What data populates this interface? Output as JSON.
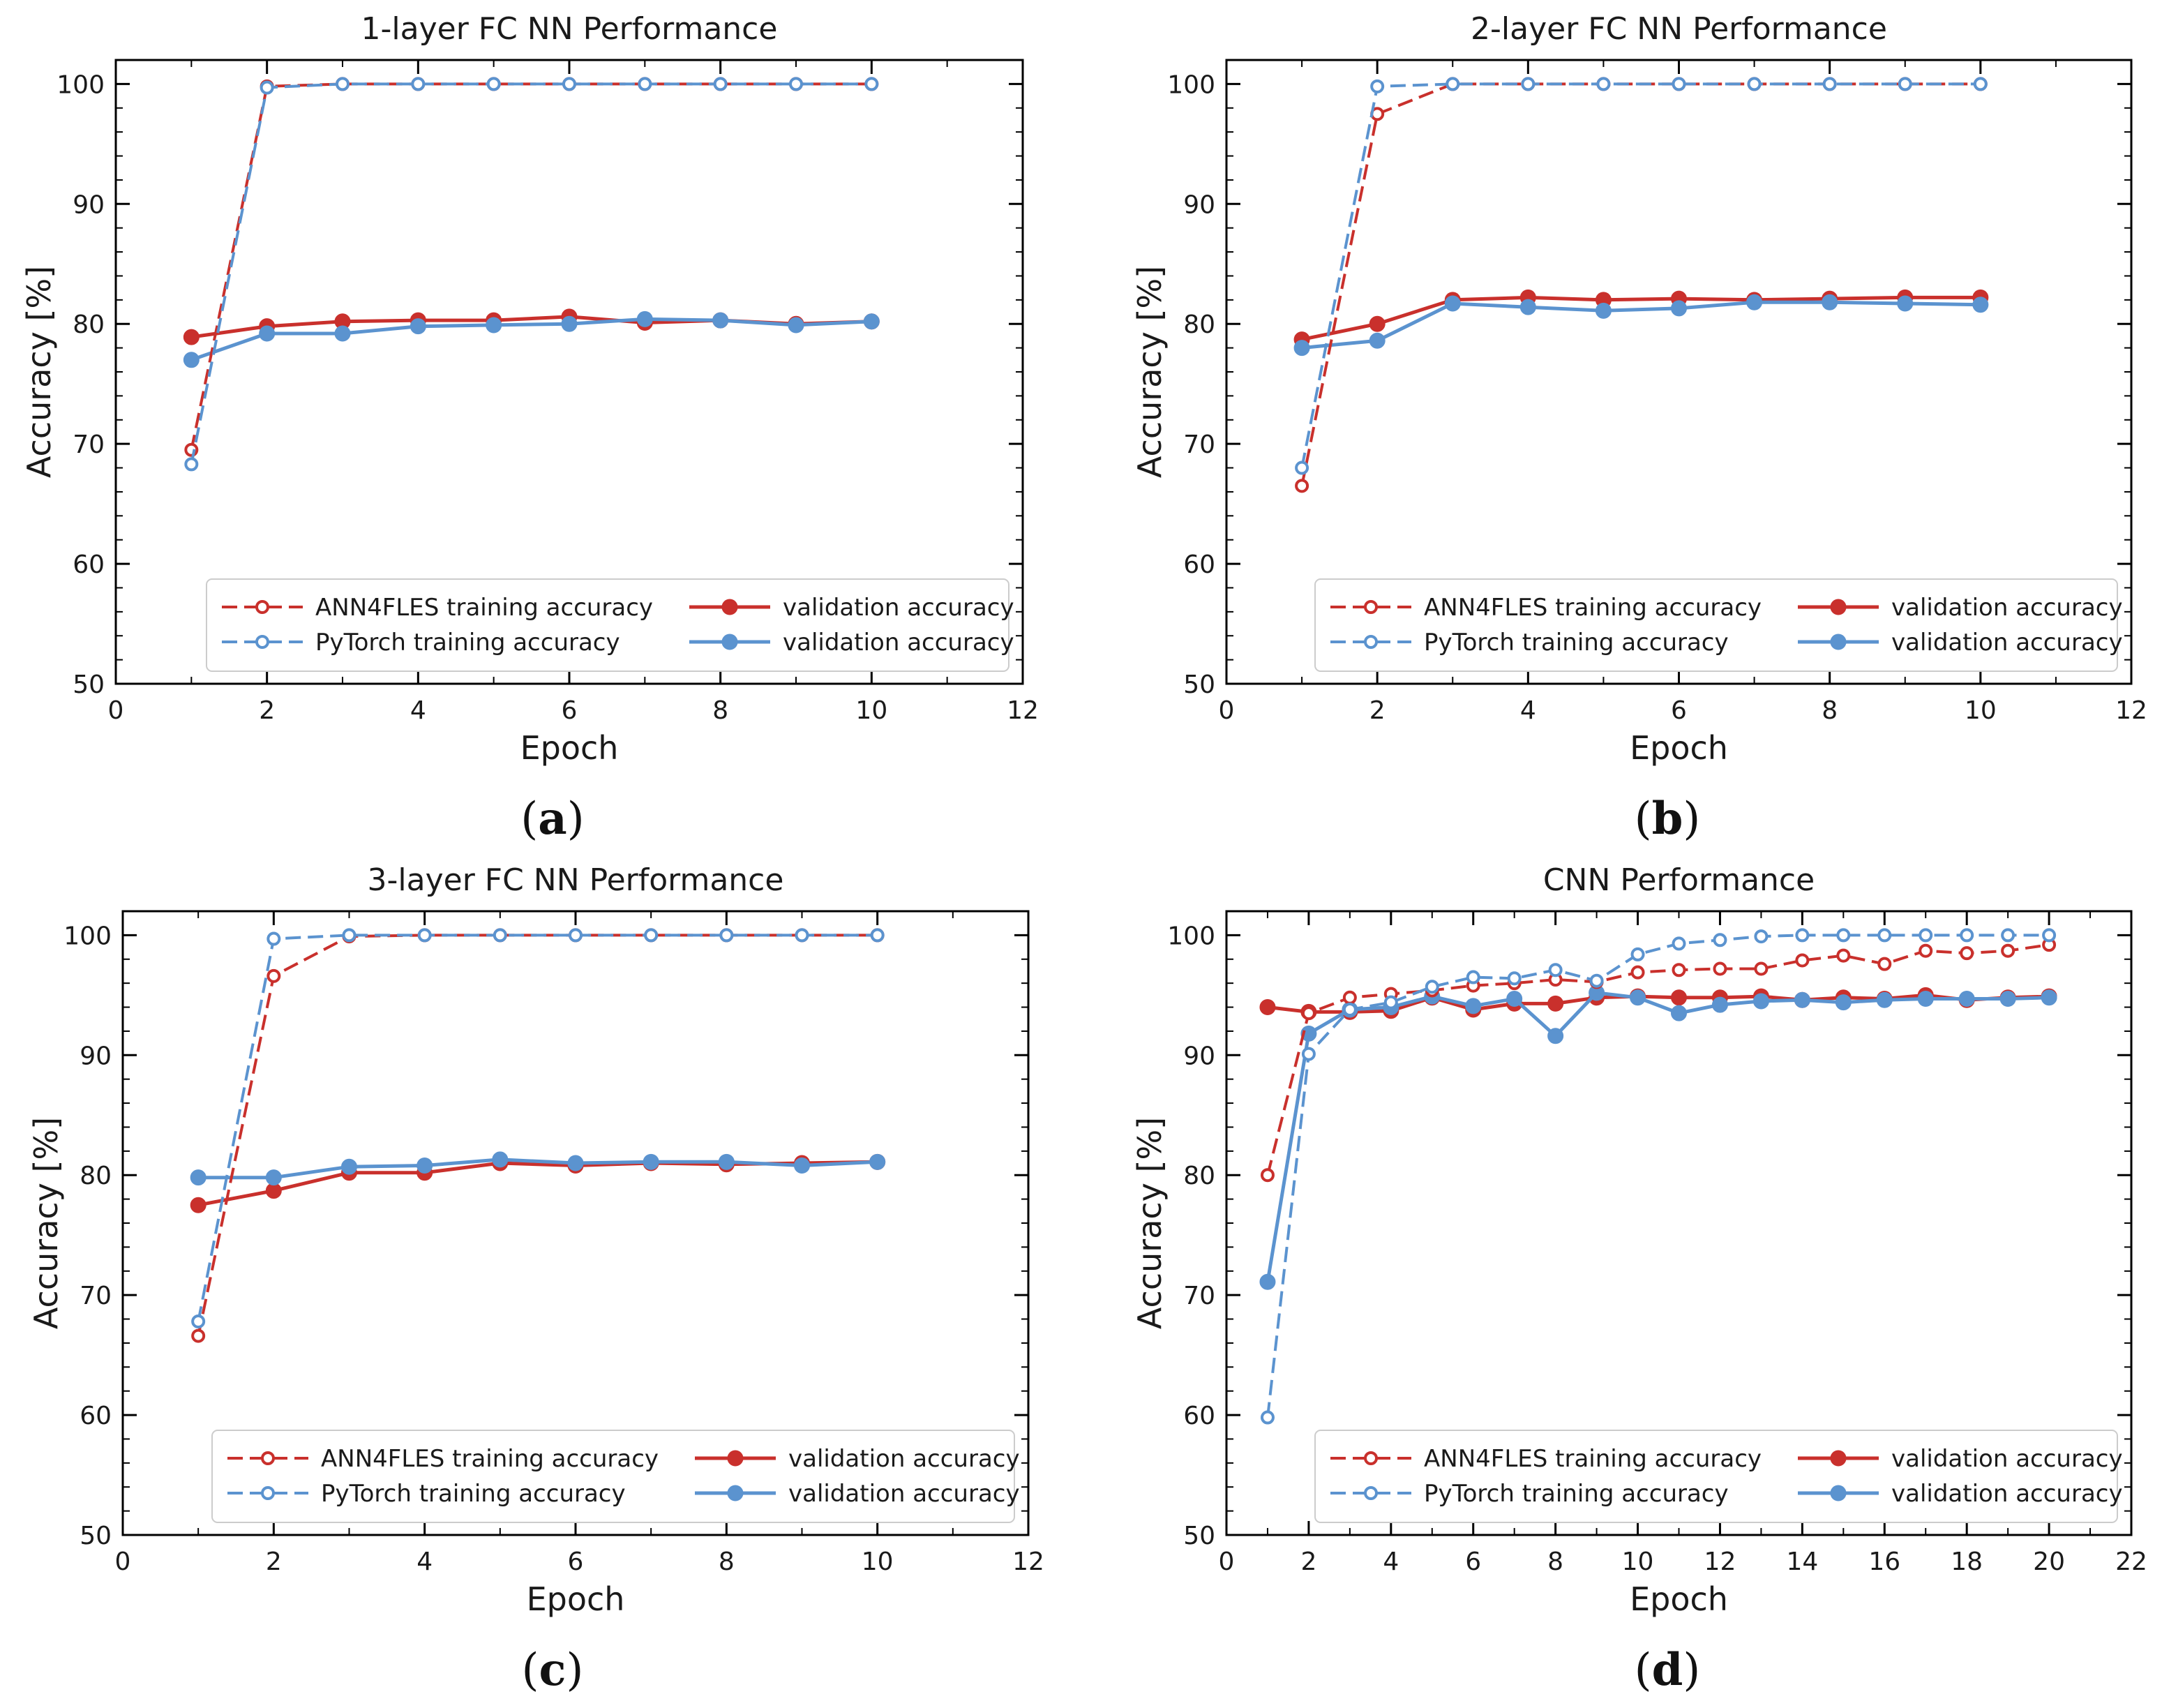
{
  "colors": {
    "ann4fles": "#c9302c",
    "pytorch": "#5b93cf",
    "axis": "#000000",
    "text": "#1a1a1a"
  },
  "chart_data": [
    {
      "type": "line",
      "panel": "a",
      "caption": {
        "open": "(",
        "letter": "a",
        "close": ")"
      },
      "title": "1-layer FC NN Performance",
      "xlabel": "Epoch",
      "ylabel": "Accuracy [%]",
      "xlim": [
        0,
        12
      ],
      "ylim": [
        50,
        102
      ],
      "xticks": [
        0,
        2,
        4,
        6,
        8,
        10,
        12
      ],
      "yticks": [
        50,
        60,
        70,
        80,
        90,
        100
      ],
      "legend_position": "lower-right",
      "x": [
        1,
        2,
        3,
        4,
        5,
        6,
        7,
        8,
        9,
        10
      ],
      "series": [
        {
          "name": "ANN4FLES training accuracy",
          "framework": "ANN4FLES",
          "style": "dashed-hollow",
          "values": [
            69.5,
            99.8,
            100,
            100,
            100,
            100,
            100,
            100,
            100,
            100
          ]
        },
        {
          "name": "PyTorch training accuracy",
          "framework": "PyTorch",
          "style": "dashed-hollow",
          "values": [
            68.3,
            99.7,
            100,
            100,
            100,
            100,
            100,
            100,
            100,
            100
          ]
        },
        {
          "name": "validation accuracy",
          "framework": "ANN4FLES",
          "style": "solid-filled",
          "values": [
            78.9,
            79.8,
            80.2,
            80.3,
            80.3,
            80.6,
            80.1,
            80.3,
            80.0,
            80.2
          ]
        },
        {
          "name": "validation accuracy",
          "framework": "PyTorch",
          "style": "solid-filled",
          "values": [
            77.0,
            79.2,
            79.2,
            79.8,
            79.9,
            80.0,
            80.4,
            80.3,
            79.9,
            80.2
          ]
        }
      ]
    },
    {
      "type": "line",
      "panel": "b",
      "caption": {
        "open": "(",
        "letter": "b",
        "close": ")"
      },
      "title": "2-layer FC NN Performance",
      "xlabel": "Epoch",
      "ylabel": "Accuracy [%]",
      "xlim": [
        0,
        12
      ],
      "ylim": [
        50,
        102
      ],
      "xticks": [
        0,
        2,
        4,
        6,
        8,
        10,
        12
      ],
      "yticks": [
        50,
        60,
        70,
        80,
        90,
        100
      ],
      "legend_position": "lower-right",
      "x": [
        1,
        2,
        3,
        4,
        5,
        6,
        7,
        8,
        9,
        10
      ],
      "series": [
        {
          "name": "ANN4FLES training accuracy",
          "framework": "ANN4FLES",
          "style": "dashed-hollow",
          "values": [
            66.5,
            97.5,
            100,
            100,
            100,
            100,
            100,
            100,
            100,
            100
          ]
        },
        {
          "name": "PyTorch training accuracy",
          "framework": "PyTorch",
          "style": "dashed-hollow",
          "values": [
            68.0,
            99.8,
            100,
            100,
            100,
            100,
            100,
            100,
            100,
            100
          ]
        },
        {
          "name": "validation accuracy",
          "framework": "ANN4FLES",
          "style": "solid-filled",
          "values": [
            78.7,
            80.0,
            82.0,
            82.2,
            82.0,
            82.1,
            82.0,
            82.1,
            82.2,
            82.2
          ]
        },
        {
          "name": "validation accuracy",
          "framework": "PyTorch",
          "style": "solid-filled",
          "values": [
            78.0,
            78.6,
            81.7,
            81.4,
            81.1,
            81.3,
            81.8,
            81.8,
            81.7,
            81.6
          ]
        }
      ]
    },
    {
      "type": "line",
      "panel": "c",
      "caption": {
        "open": "(",
        "letter": "c",
        "close": ")"
      },
      "title": "3-layer FC NN Performance",
      "xlabel": "Epoch",
      "ylabel": "Accuracy [%]",
      "xlim": [
        0,
        12
      ],
      "ylim": [
        50,
        102
      ],
      "xticks": [
        0,
        2,
        4,
        6,
        8,
        10,
        12
      ],
      "yticks": [
        50,
        60,
        70,
        80,
        90,
        100
      ],
      "legend_position": "lower-right",
      "x": [
        1,
        2,
        3,
        4,
        5,
        6,
        7,
        8,
        9,
        10
      ],
      "series": [
        {
          "name": "ANN4FLES training accuracy",
          "framework": "ANN4FLES",
          "style": "dashed-hollow",
          "values": [
            66.6,
            96.6,
            99.9,
            100,
            100,
            100,
            100,
            100,
            100,
            100
          ]
        },
        {
          "name": "PyTorch training accuracy",
          "framework": "PyTorch",
          "style": "dashed-hollow",
          "values": [
            67.8,
            99.7,
            100,
            100,
            100,
            100,
            100,
            100,
            100,
            100
          ]
        },
        {
          "name": "validation accuracy",
          "framework": "ANN4FLES",
          "style": "solid-filled",
          "values": [
            77.5,
            78.7,
            80.2,
            80.2,
            81.0,
            80.8,
            81.0,
            80.9,
            81.0,
            81.1
          ]
        },
        {
          "name": "validation accuracy",
          "framework": "PyTorch",
          "style": "solid-filled",
          "values": [
            79.8,
            79.8,
            80.7,
            80.8,
            81.3,
            81.0,
            81.1,
            81.1,
            80.8,
            81.1
          ]
        }
      ]
    },
    {
      "type": "line",
      "panel": "d",
      "caption": {
        "open": "(",
        "letter": "d",
        "close": ")"
      },
      "title": "CNN Performance",
      "xlabel": "Epoch",
      "ylabel": "Accuracy [%]",
      "xlim": [
        0,
        22
      ],
      "ylim": [
        50,
        102
      ],
      "xticks": [
        0,
        2,
        4,
        6,
        8,
        10,
        12,
        14,
        16,
        18,
        20,
        22
      ],
      "yticks": [
        50,
        60,
        70,
        80,
        90,
        100
      ],
      "legend_position": "lower-right",
      "x": [
        1,
        2,
        3,
        4,
        5,
        6,
        7,
        8,
        9,
        10,
        11,
        12,
        13,
        14,
        15,
        16,
        17,
        18,
        19,
        20
      ],
      "series": [
        {
          "name": "ANN4FLES training accuracy",
          "framework": "ANN4FLES",
          "style": "dashed-hollow",
          "values": [
            80.0,
            93.5,
            94.8,
            95.1,
            95.4,
            95.8,
            96.0,
            96.3,
            96.1,
            96.9,
            97.1,
            97.2,
            97.2,
            97.9,
            98.3,
            97.6,
            98.7,
            98.5,
            98.7,
            99.2
          ]
        },
        {
          "name": "PyTorch training accuracy",
          "framework": "PyTorch",
          "style": "dashed-hollow",
          "values": [
            59.8,
            90.1,
            93.8,
            94.4,
            95.7,
            96.5,
            96.4,
            97.1,
            96.2,
            98.4,
            99.3,
            99.6,
            99.9,
            100,
            100,
            100,
            100,
            100,
            100,
            100
          ]
        },
        {
          "name": "validation accuracy",
          "framework": "ANN4FLES",
          "style": "solid-filled",
          "values": [
            94.0,
            93.6,
            93.6,
            93.7,
            94.8,
            93.8,
            94.3,
            94.3,
            94.8,
            94.9,
            94.8,
            94.8,
            94.9,
            94.6,
            94.8,
            94.7,
            95.0,
            94.6,
            94.8,
            94.9
          ]
        },
        {
          "name": "validation accuracy",
          "framework": "PyTorch",
          "style": "solid-filled",
          "values": [
            71.1,
            91.8,
            93.8,
            94.0,
            94.9,
            94.1,
            94.7,
            91.6,
            95.2,
            94.8,
            93.5,
            94.2,
            94.5,
            94.6,
            94.4,
            94.6,
            94.7,
            94.7,
            94.7,
            94.8
          ]
        }
      ]
    }
  ]
}
